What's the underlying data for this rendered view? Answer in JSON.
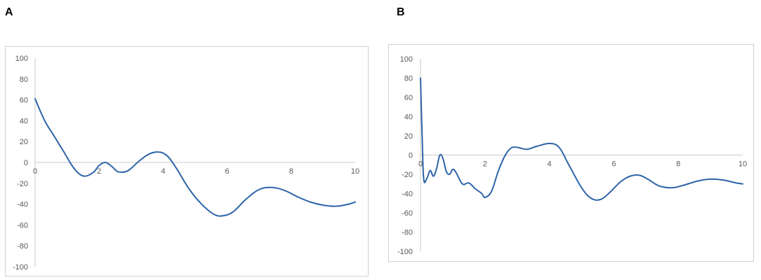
{
  "panels": [
    {
      "label": "A"
    },
    {
      "label": "B"
    }
  ],
  "chart_data": [
    {
      "type": "line",
      "title": "",
      "xlabel": "",
      "ylabel": "",
      "xlim": [
        0,
        10
      ],
      "ylim": [
        -100,
        100
      ],
      "xticks": [
        0,
        2,
        4,
        6,
        8,
        10
      ],
      "yticks": [
        100,
        80,
        60,
        40,
        20,
        0,
        -20,
        -40,
        -60,
        -80,
        -100
      ],
      "grid": false,
      "legend": "none",
      "color": "#2e64a8",
      "series": [
        {
          "x": [
            0,
            0.3,
            0.6,
            0.9,
            1.2,
            1.5,
            1.8,
            2.0,
            2.2,
            2.4,
            2.6,
            2.9,
            3.2,
            3.5,
            3.8,
            4.1,
            4.4,
            4.8,
            5.2,
            5.6,
            5.9,
            6.2,
            6.6,
            7.0,
            7.4,
            7.8,
            8.2,
            8.6,
            9.0,
            9.4,
            9.8,
            10
          ],
          "values": [
            61,
            40,
            25,
            10,
            -5,
            -13,
            -10,
            -3,
            0,
            -4,
            -9,
            -8,
            0,
            7,
            10,
            7,
            -5,
            -25,
            -40,
            -50,
            -51,
            -47,
            -35,
            -26,
            -24,
            -27,
            -33,
            -38,
            -41,
            -42,
            -40,
            -38
          ]
        }
      ]
    },
    {
      "type": "line",
      "title": "",
      "xlabel": "",
      "ylabel": "",
      "xlim": [
        0,
        10
      ],
      "ylim": [
        -100,
        100
      ],
      "xticks": [
        0,
        2,
        4,
        6,
        8,
        10
      ],
      "yticks": [
        100,
        80,
        60,
        40,
        20,
        0,
        -20,
        -40,
        -60,
        -80,
        -100
      ],
      "grid": false,
      "legend": "none",
      "color": "#2e64a8",
      "series": [
        {
          "x": [
            0,
            0.05,
            0.1,
            0.2,
            0.3,
            0.4,
            0.5,
            0.6,
            0.7,
            0.8,
            0.9,
            1.0,
            1.1,
            1.3,
            1.5,
            1.7,
            1.9,
            2.0,
            2.2,
            2.4,
            2.6,
            2.8,
            3.0,
            3.3,
            3.6,
            4.0,
            4.3,
            4.6,
            5.0,
            5.3,
            5.6,
            5.9,
            6.2,
            6.5,
            6.8,
            7.1,
            7.4,
            7.8,
            8.2,
            8.6,
            9.0,
            9.4,
            9.8,
            10
          ],
          "values": [
            80,
            20,
            -25,
            -24,
            -16,
            -22,
            -14,
            0,
            -4,
            -17,
            -20,
            -15,
            -18,
            -30,
            -29,
            -35,
            -40,
            -44,
            -38,
            -18,
            -2,
            7,
            8,
            6,
            9,
            12,
            8,
            -10,
            -34,
            -45,
            -46,
            -38,
            -28,
            -22,
            -21,
            -26,
            -32,
            -34,
            -31,
            -27,
            -25,
            -26,
            -29,
            -30
          ]
        }
      ]
    }
  ]
}
